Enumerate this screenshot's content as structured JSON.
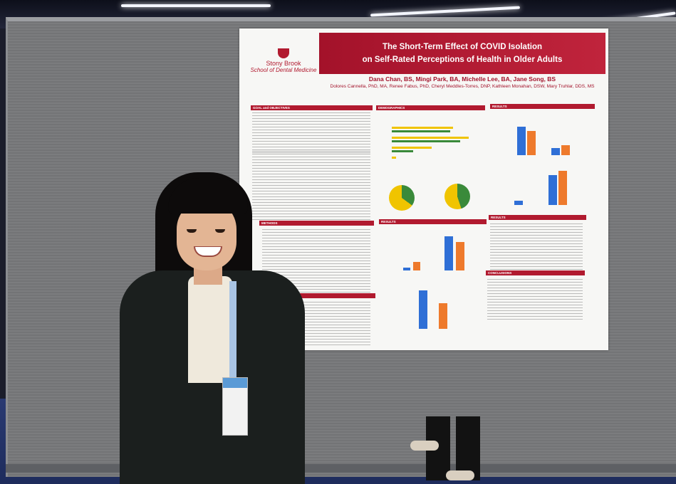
{
  "poster": {
    "title_line1": "The Short-Term Effect of COVID Isolation",
    "title_line2": "on Self-Rated Perceptions of Health in Older Adults",
    "authors_line1": "Dana Chan, BS, Mingi Park, BA, Michelle Lee, BA, Jane Song, BS",
    "authors_line2": "Dolores Cannella, PhD, MA, Renee Fabus, PhD, Cheryl Meddles-Torres, DNP, Kathleen Monahan, DSW, Mary Truhlar, DDS, MS",
    "logo_line1": "Stony Brook",
    "logo_line2": "School of Dental Medicine",
    "sections": {
      "goal": "GOAL and OBJECTIVES",
      "demographics": "DEMOGRAPHICS",
      "results_top": "RESULTS",
      "methods": "METHODS",
      "results_mid": "RESULTS",
      "results_right": "RESULTS",
      "conclusions": "CONCLUSIONS"
    },
    "colors": {
      "brand": "#b11a2f",
      "bar_blue": "#2f6fd6",
      "bar_orange": "#ee7a2c",
      "bar_green": "#3a8a3a",
      "bar_yellow": "#f0c400"
    }
  }
}
